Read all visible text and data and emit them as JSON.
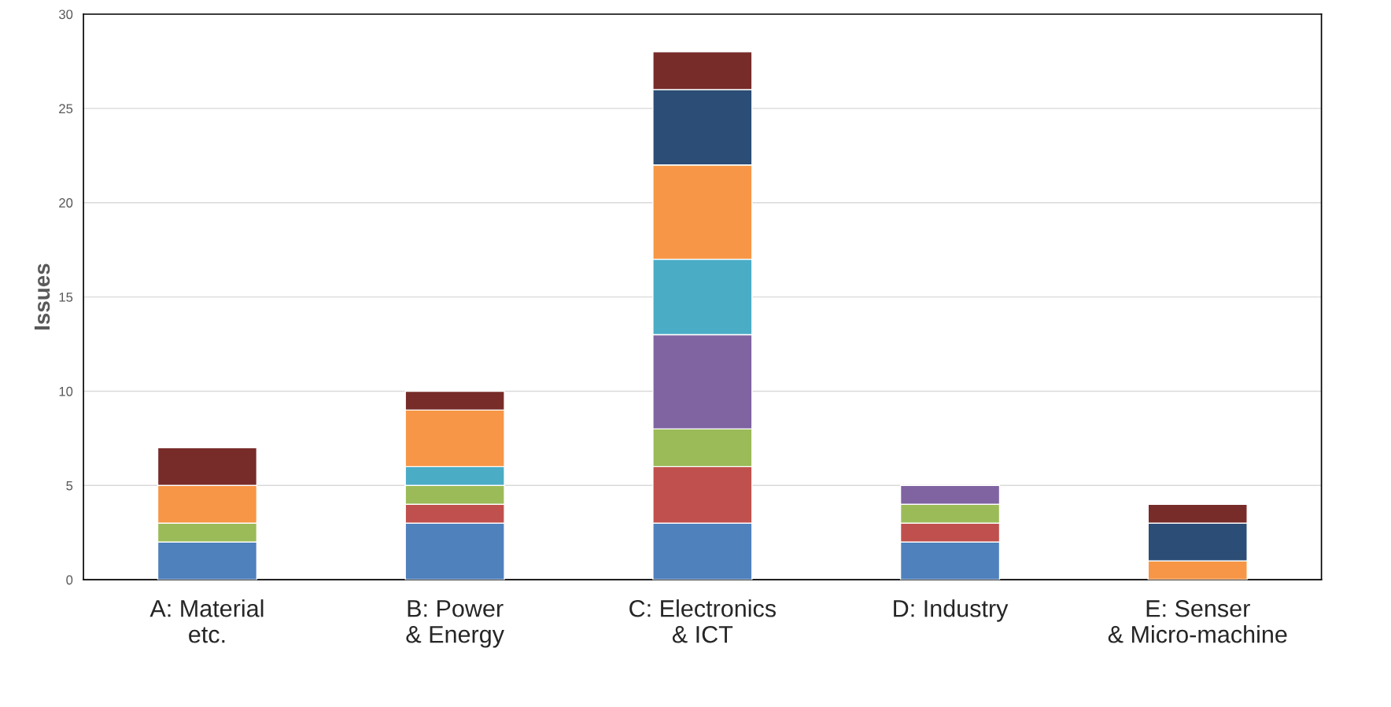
{
  "chart_data": {
    "type": "bar",
    "stacked": true,
    "ylabel": "Issues",
    "categories": [
      "A: Material\netc.",
      "B: Power\n& Energy",
      "C: Electronics\n& ICT",
      "D: Industry",
      "E: Senser\n& Micro-machine"
    ],
    "series": [
      {
        "color": "#4f81bd",
        "values": [
          2,
          3,
          3,
          2,
          null
        ]
      },
      {
        "color": "#c0504d",
        "values": [
          null,
          1,
          3,
          1,
          null
        ]
      },
      {
        "color": "#9bbb59",
        "values": [
          1,
          1,
          2,
          1,
          null
        ]
      },
      {
        "color": "#8064a2",
        "values": [
          null,
          null,
          5,
          1,
          null
        ]
      },
      {
        "color": "#4bacc6",
        "values": [
          null,
          1,
          4,
          null,
          null
        ]
      },
      {
        "color": "#f79646",
        "values": [
          2,
          3,
          5,
          null,
          1
        ]
      },
      {
        "color": "#2c4d75",
        "values": [
          null,
          null,
          4,
          null,
          2
        ]
      },
      {
        "color": "#772c2a",
        "values": [
          2,
          1,
          2,
          null,
          1
        ]
      }
    ],
    "ylim": [
      0,
      30
    ],
    "yticks": [
      0,
      5,
      10,
      15,
      20,
      25,
      30
    ],
    "grid": "y",
    "legend": false
  }
}
